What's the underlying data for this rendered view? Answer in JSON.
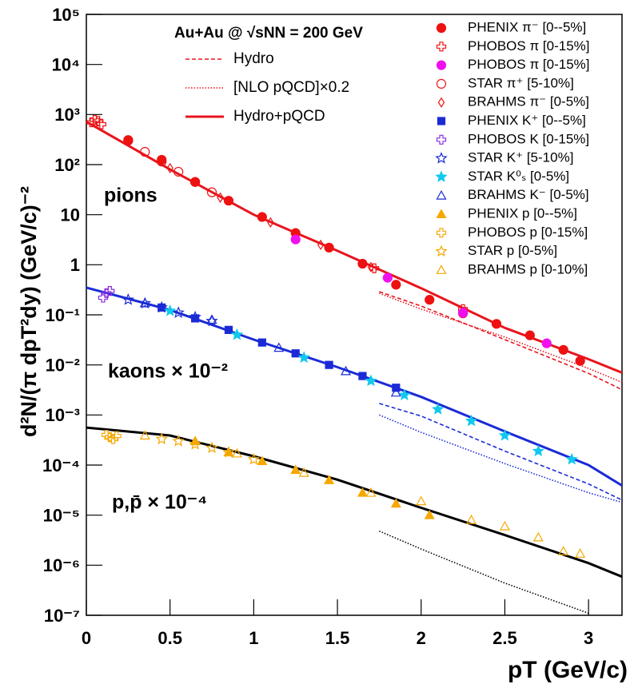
{
  "chart_data": {
    "type": "scatter",
    "title": "Au+Au @ √sNN = 200 GeV",
    "x_label": "pT (GeV/c)",
    "y_label": "d²N/(π dpT²dy) (GeV/c)⁻²",
    "annotations": [
      "pions",
      "kaons × 10⁻²",
      "p,p̄ × 10⁻⁴"
    ],
    "log_y": true,
    "xlim": [
      0,
      3.2
    ],
    "ylim": [
      1e-07,
      100000
    ],
    "xticks": [
      0,
      0.5,
      1,
      1.5,
      2,
      2.5,
      3
    ],
    "yticks": [
      {
        "value": 1e-07,
        "label": "10⁻⁷"
      },
      {
        "value": 1e-06,
        "label": "10⁻⁶"
      },
      {
        "value": 1e-05,
        "label": "10⁻⁵"
      },
      {
        "value": 0.0001,
        "label": "10⁻⁴"
      },
      {
        "value": 0.001,
        "label": "10⁻³"
      },
      {
        "value": 0.01,
        "label": "10⁻²"
      },
      {
        "value": 0.1,
        "label": "10⁻¹"
      },
      1,
      10,
      {
        "value": 100,
        "label": "10²"
      },
      {
        "value": 1000,
        "label": "10³"
      },
      {
        "value": 10000,
        "label": "10⁴"
      },
      {
        "value": 100000,
        "label": "10⁵"
      }
    ],
    "curves": [
      {
        "name": "Hydro",
        "style": "dashed",
        "color": "#e8141e",
        "x": [
          1.75,
          2.0,
          2.5,
          3.0,
          3.2
        ],
        "values": [
          0.29,
          0.15,
          0.032,
          0.0068,
          0.0032
        ]
      },
      {
        "name": "[NLO pQCD]×0.2",
        "style": "dotted",
        "color": "#e8141e",
        "x": [
          1.75,
          2.0,
          2.5,
          3.0,
          3.2
        ],
        "values": [
          0.27,
          0.13,
          0.036,
          0.0085,
          0.0045
        ]
      },
      {
        "name": "Hydro+pQCD",
        "style": "solid",
        "color": "#e8141e",
        "x": [
          0,
          0.5,
          1,
          1.5,
          2,
          2.5,
          3,
          3.2
        ],
        "values": [
          720,
          80,
          10,
          1.9,
          0.34,
          0.055,
          0.013,
          0.007
        ]
      },
      {
        "style": "dashed",
        "color": "#1a2bd6",
        "x": [
          1.75,
          2.0,
          2.5,
          3.0,
          3.2
        ],
        "values": [
          0.0017,
          0.00095,
          0.00019,
          4.2e-05,
          2e-05
        ]
      },
      {
        "style": "dotted",
        "color": "#1a2bd6",
        "x": [
          1.75,
          2.0,
          2.5,
          3.0,
          3.2
        ],
        "values": [
          0.001,
          0.00045,
          0.000107,
          2.8e-05,
          1.8e-05
        ]
      },
      {
        "style": "solid",
        "color": "#1a2bd6",
        "x": [
          0,
          0.5,
          1,
          1.5,
          2,
          2.5,
          3,
          3.2
        ],
        "values": [
          0.35,
          0.125,
          0.032,
          0.009,
          0.0023,
          0.00047,
          0.0001,
          3.9e-05
        ]
      },
      {
        "style": "dotted",
        "color": "#000000",
        "x": [
          1.75,
          2.0,
          2.5,
          3.0
        ],
        "values": [
          4.8e-06,
          2.1e-06,
          4.4e-07,
          1.1e-07
        ]
      },
      {
        "style": "solid",
        "color": "#000000",
        "x": [
          0,
          0.5,
          1,
          1.5,
          2,
          2.5,
          3,
          3.2
        ],
        "values": [
          0.00056,
          0.00039,
          0.00015,
          5.1e-05,
          1.4e-05,
          4e-06,
          1.1e-06,
          5.9e-07
        ]
      }
    ],
    "series": [
      {
        "name": "PHENIX π⁻ [0--5%]",
        "color": "#ee1111",
        "marker": "circle-filled",
        "x": [
          0.25,
          0.45,
          0.65,
          0.85,
          1.05,
          1.25,
          1.45,
          1.65,
          1.85,
          2.05,
          2.25,
          2.45,
          2.65,
          2.85,
          2.95
        ],
        "values": [
          310,
          125,
          45,
          19,
          9,
          4.3,
          2.2,
          1.05,
          0.4,
          0.2,
          0.107,
          0.066,
          0.039,
          0.02,
          0.012
        ]
      },
      {
        "name": "PHOBOS π [0-15%]",
        "color": "#ee1111",
        "marker": "cross-open",
        "x": [
          0.03,
          0.05,
          0.07,
          0.09,
          1.72,
          2.25
        ],
        "values": [
          700,
          780,
          750,
          640,
          0.85,
          0.13
        ]
      },
      {
        "name": "PHOBOS π [0-15%]",
        "color": "#ee11ee",
        "marker": "circle-filled",
        "x": [
          1.25,
          1.8,
          2.25,
          2.75
        ],
        "values": [
          3.2,
          0.55,
          0.11,
          0.027
        ]
      },
      {
        "name": "STAR π⁺ [5-10%]",
        "color": "#ee1111",
        "marker": "circle-open",
        "x": [
          0.25,
          0.35,
          0.45,
          0.55,
          0.65,
          0.75
        ],
        "values": [
          300,
          180,
          115,
          72,
          45,
          28
        ]
      },
      {
        "name": "BRAHMS π⁻ [0-5%]",
        "color": "#ee1111",
        "marker": "diamond-open",
        "x": [
          0.5,
          0.8,
          1.1,
          1.4,
          1.7
        ],
        "values": [
          85,
          22,
          7,
          2.5,
          0.9
        ]
      },
      {
        "name": "PHENIX K⁺ [0--5%]",
        "color": "#1a2bd6",
        "marker": "square-filled",
        "x": [
          0.45,
          0.65,
          0.85,
          1.05,
          1.25,
          1.45,
          1.65,
          1.85
        ],
        "values": [
          0.14,
          0.085,
          0.05,
          0.028,
          0.017,
          0.01,
          0.006,
          0.0035
        ]
      },
      {
        "name": "PHOBOS K [0-15%]",
        "color": "#8a2be2",
        "marker": "cross-open",
        "x": [
          0.1,
          0.12,
          0.14
        ],
        "values": [
          0.22,
          0.27,
          0.3
        ]
      },
      {
        "name": "STAR K⁺ [5-10%]",
        "color": "#1a2bd6",
        "marker": "star-open",
        "x": [
          0.25,
          0.35,
          0.45,
          0.55,
          0.65,
          0.75
        ],
        "values": [
          0.2,
          0.17,
          0.14,
          0.11,
          0.09,
          0.075
        ]
      },
      {
        "name": "STAR K⁰ₛ [0-5%]",
        "color": "#11c8ee",
        "marker": "star-filled",
        "x": [
          0.5,
          0.9,
          1.3,
          1.7,
          1.9,
          2.1,
          2.3,
          2.5,
          2.7,
          2.9
        ],
        "values": [
          0.12,
          0.04,
          0.014,
          0.0048,
          0.0025,
          0.0013,
          0.00076,
          0.00039,
          0.00019,
          0.00013
        ]
      },
      {
        "name": "BRAHMS K⁻ [0-5%]",
        "color": "#1a2bd6",
        "marker": "triangle-open",
        "x": [
          0.35,
          0.75,
          1.15,
          1.55,
          1.85
        ],
        "values": [
          0.17,
          0.08,
          0.022,
          0.0075,
          0.0028
        ]
      },
      {
        "name": "PHENIX p [0--5%]",
        "color": "#f5a800",
        "marker": "triangle-filled",
        "x": [
          0.65,
          0.85,
          1.05,
          1.25,
          1.45,
          1.65,
          1.85,
          2.05
        ],
        "values": [
          0.0003,
          0.00018,
          0.00012,
          8e-05,
          5e-05,
          2.8e-05,
          1.7e-05,
          1e-05
        ]
      },
      {
        "name": "PHOBOS p [0-15%]",
        "color": "#f5a800",
        "marker": "cross-open",
        "x": [
          0.12,
          0.14,
          0.16,
          0.18
        ],
        "values": [
          0.0004,
          0.00036,
          0.00033,
          0.00038
        ]
      },
      {
        "name": "STAR p [0-5%]",
        "color": "#f5a800",
        "marker": "star-open",
        "x": [
          0.45,
          0.55,
          0.65,
          0.75,
          0.85,
          1.0
        ],
        "values": [
          0.00033,
          0.0003,
          0.00026,
          0.00022,
          0.00018,
          0.00013
        ]
      },
      {
        "name": "BRAHMS p [0-10%]",
        "color": "#f5a800",
        "marker": "triangle-open",
        "x": [
          0.35,
          0.9,
          1.3,
          1.7,
          2.0,
          2.3,
          2.5,
          2.7,
          2.85,
          2.95
        ],
        "values": [
          0.00039,
          0.00017,
          7e-05,
          2.8e-05,
          1.9e-05,
          8e-06,
          6e-06,
          3.6e-06,
          1.9e-06,
          1.7e-06
        ]
      }
    ]
  }
}
